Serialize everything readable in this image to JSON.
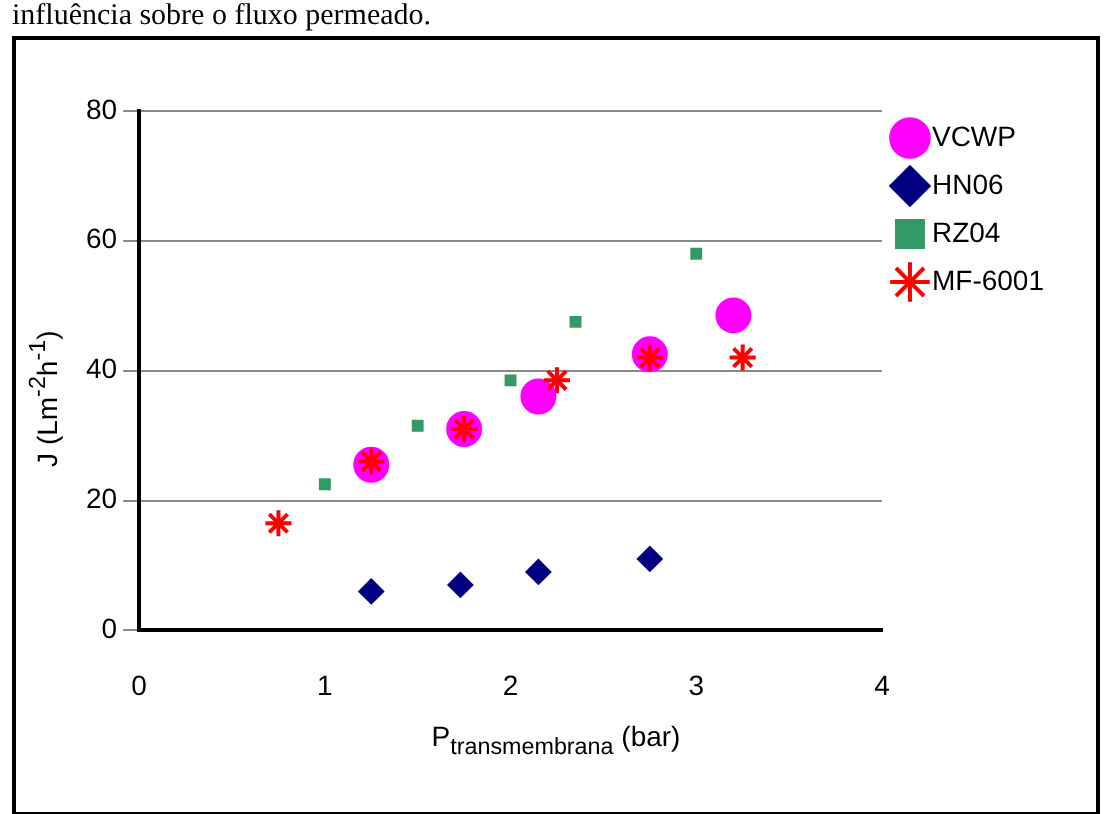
{
  "chart_data": {
    "type": "scatter",
    "xlabel": "P$_{transmembrana}$ (bar)",
    "ylabel": "J (Lm$^{-2}$h$^{-1}$)",
    "annotations": [
      "influência sobre o fluxo permeado."
    ],
    "xlim": [
      0,
      4
    ],
    "xticks": [
      0,
      1,
      2,
      3,
      4
    ],
    "ylim": [
      0,
      80
    ],
    "yticks": [
      0,
      20,
      40,
      60,
      80
    ],
    "grid": "y",
    "legend": "top right",
    "series": [
      {
        "name": "VCWP",
        "color": "#ff00ff",
        "marker": "circle",
        "x": [
          1.25,
          1.75,
          2.15,
          2.75,
          3.2
        ],
        "values": [
          25.5,
          31,
          36,
          42.5,
          48.5
        ]
      },
      {
        "name": "HN06",
        "color": "#000080",
        "marker": "diamond",
        "x": [
          1.25,
          1.73,
          2.15,
          2.75
        ],
        "values": [
          6,
          7,
          9,
          11
        ]
      },
      {
        "name": "RZ04",
        "color": "#339966",
        "marker": "square",
        "x": [
          1.0,
          1.5,
          2.0,
          2.35,
          3.0
        ],
        "values": [
          22.5,
          31.5,
          38.5,
          47.5,
          58
        ]
      },
      {
        "name": "MF-6001",
        "color": "#ff0000",
        "marker": "cross",
        "x": [
          0.75,
          1.25,
          1.75,
          2.25,
          2.75,
          3.25
        ],
        "values": [
          16.5,
          26,
          31,
          38.5,
          42,
          42
        ]
      }
    ]
  }
}
